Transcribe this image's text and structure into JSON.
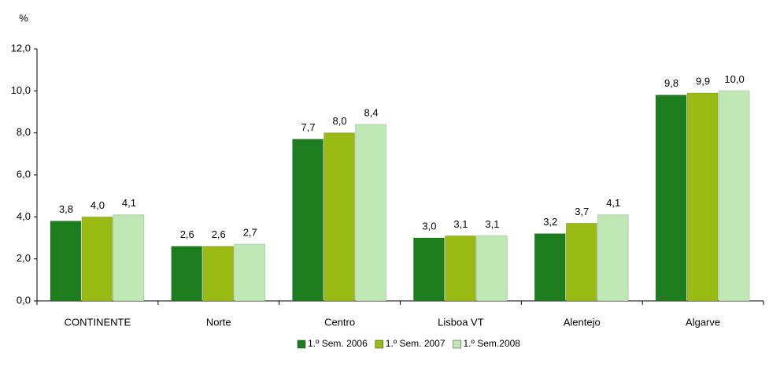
{
  "chart_data": {
    "type": "bar",
    "y_label": "%",
    "categories": [
      "CONTINENTE",
      "Norte",
      "Centro",
      "Lisboa VT",
      "Alentejo",
      "Algarve"
    ],
    "series": [
      {
        "name": "1.º Sem. 2006",
        "color": "#1e7d1e",
        "values": [
          3.8,
          2.6,
          7.7,
          3.0,
          3.2,
          9.8
        ],
        "value_labels": [
          "3,8",
          "2,6",
          "7,7",
          "3,0",
          "3,2",
          "9,8"
        ]
      },
      {
        "name": "1.º Sem. 2007",
        "color": "#9abb14",
        "values": [
          4.0,
          2.6,
          8.0,
          3.1,
          3.7,
          9.9
        ],
        "value_labels": [
          "4,0",
          "2,6",
          "8,0",
          "3,1",
          "3,7",
          "9,9"
        ]
      },
      {
        "name": "1.º Sem.2008",
        "color": "#bfe8b4",
        "values": [
          4.1,
          2.7,
          8.4,
          3.1,
          4.1,
          10.0
        ],
        "value_labels": [
          "4,1",
          "2,7",
          "8,4",
          "3,1",
          "4,1",
          "10,0"
        ]
      }
    ],
    "ylim": [
      0,
      12
    ],
    "yticks": [
      {
        "value": 0,
        "label": "0,0"
      },
      {
        "value": 2,
        "label": "2,0"
      },
      {
        "value": 4,
        "label": "4,0"
      },
      {
        "value": 6,
        "label": "6,0"
      },
      {
        "value": 8,
        "label": "8,0"
      },
      {
        "value": 10,
        "label": "10,0"
      },
      {
        "value": 12,
        "label": "12,0"
      }
    ],
    "legend": "bottom"
  }
}
